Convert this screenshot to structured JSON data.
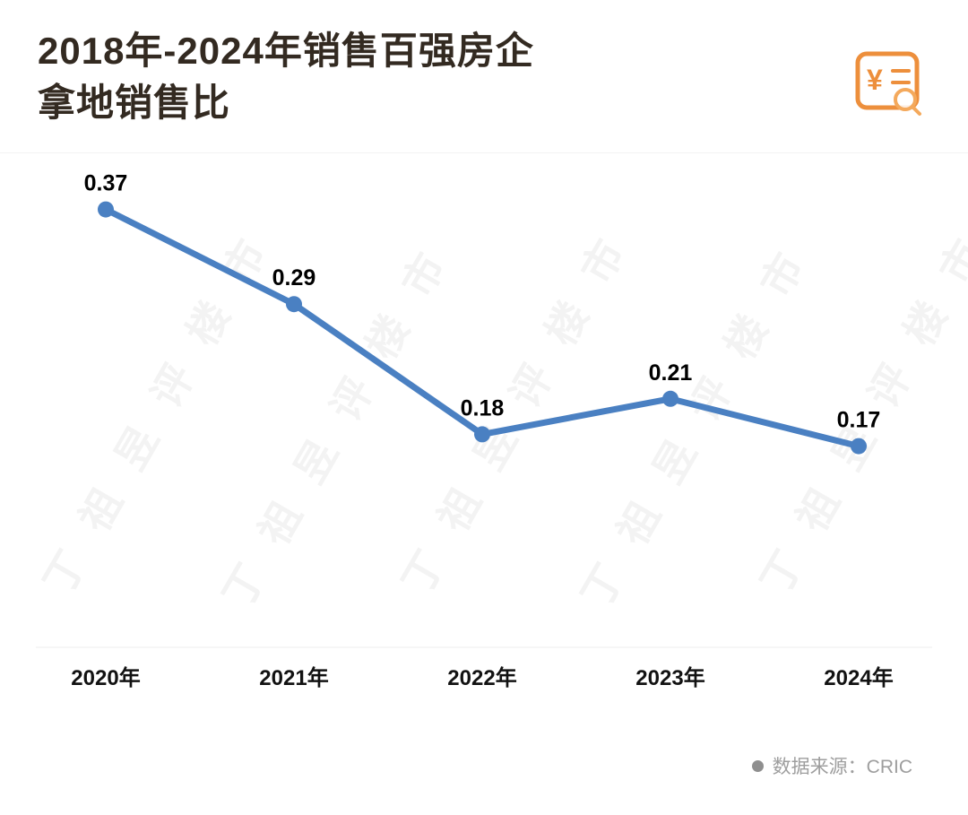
{
  "title": {
    "line1": "2018年-2024年销售百强房企",
    "line2": "拿地销售比"
  },
  "watermark": "丁祖昱评楼市",
  "icon": {
    "name": "receipt-search-icon",
    "color": "#ED8F3C",
    "yen": "¥"
  },
  "colors": {
    "line": "#4A80C2",
    "title": "#332A21",
    "value_label": "#000000",
    "x_label": "#121212",
    "axis": "#ECECEC",
    "footer": "#9E9E9E"
  },
  "footer": {
    "source_label": "数据来源：CRIC"
  },
  "chart_data": {
    "type": "line",
    "title": "2018年-2024年销售百强房企拿地销售比",
    "categories": [
      "2020年",
      "2021年",
      "2022年",
      "2023年",
      "2024年"
    ],
    "values": [
      0.37,
      0.29,
      0.18,
      0.21,
      0.17
    ],
    "labels": [
      "0.37",
      "0.29",
      "0.18",
      "0.21",
      "0.17"
    ],
    "series_color": "#4A80C2",
    "xlabel": "",
    "ylabel": "",
    "ylim": [
      0,
      0.4
    ],
    "grid": false,
    "legend": "none",
    "marker": "circle"
  }
}
